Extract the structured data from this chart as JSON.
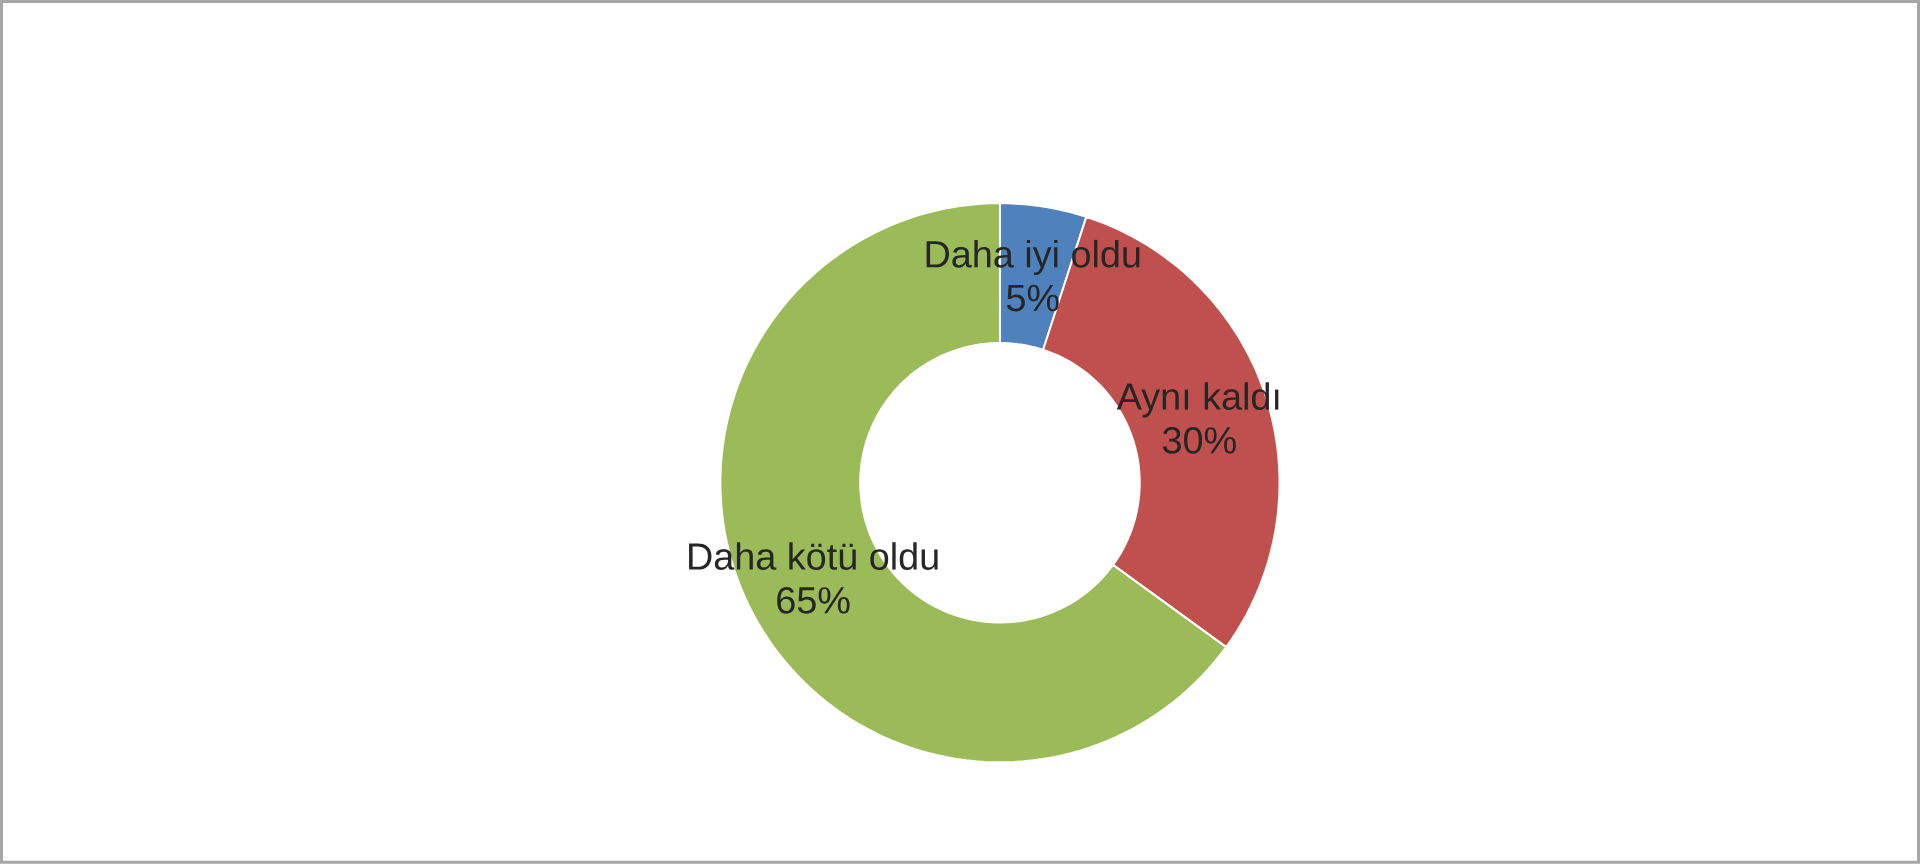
{
  "chart_data": {
    "type": "donut",
    "categories": [
      "Daha iyi oldu",
      "Aynı kaldı",
      "Daha kötü oldu"
    ],
    "values": [
      5,
      30,
      65
    ],
    "value_labels": [
      "5%",
      "30%",
      "65%"
    ],
    "colors": [
      "#4f81bd",
      "#c0504d",
      "#9bbb59"
    ]
  }
}
